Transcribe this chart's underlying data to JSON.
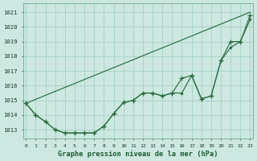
{
  "title": "Graphe pression niveau de la mer (hPa)",
  "background_color": "#cce8e0",
  "grid_color": "#9ecfbf",
  "line_color": "#2d6e45",
  "xlabel_color": "#1a5c30",
  "xlim": [
    -0.3,
    23.3
  ],
  "ylim": [
    1012.4,
    1021.6
  ],
  "yticks": [
    1013,
    1014,
    1015,
    1016,
    1017,
    1018,
    1019,
    1020,
    1021
  ],
  "xticks": [
    0,
    1,
    2,
    3,
    4,
    5,
    6,
    7,
    8,
    9,
    10,
    11,
    12,
    13,
    14,
    15,
    16,
    17,
    18,
    19,
    20,
    21,
    22,
    23
  ],
  "series_dot_x": [
    0,
    1,
    2,
    3,
    4,
    5,
    6,
    7,
    8,
    9,
    10,
    11,
    12,
    13,
    14,
    15,
    16,
    17,
    18,
    19,
    20,
    21,
    22,
    23
  ],
  "series_dot_y": [
    1014.8,
    1014.0,
    1013.55,
    1013.0,
    1012.78,
    1012.78,
    1012.78,
    1012.78,
    1013.25,
    1014.1,
    1014.85,
    1015.0,
    1015.5,
    1015.5,
    1015.3,
    1015.5,
    1015.5,
    1016.7,
    1015.1,
    1015.3,
    1017.7,
    1018.6,
    1019.0,
    1020.5
  ],
  "series_plus_x": [
    0,
    1,
    2,
    3,
    4,
    5,
    6,
    7,
    8,
    9,
    10,
    11,
    12,
    13,
    14,
    15,
    16,
    17,
    18,
    19,
    20,
    21,
    22,
    23
  ],
  "series_plus_y": [
    1014.8,
    1014.0,
    1013.55,
    1013.0,
    1012.78,
    1012.78,
    1012.78,
    1012.78,
    1013.25,
    1014.1,
    1014.85,
    1015.0,
    1015.5,
    1015.5,
    1015.3,
    1015.5,
    1016.5,
    1016.7,
    1015.1,
    1015.3,
    1017.7,
    1019.0,
    1019.0,
    1020.8
  ],
  "series_line_x": [
    0,
    23
  ],
  "series_line_y": [
    1014.8,
    1021.0
  ]
}
